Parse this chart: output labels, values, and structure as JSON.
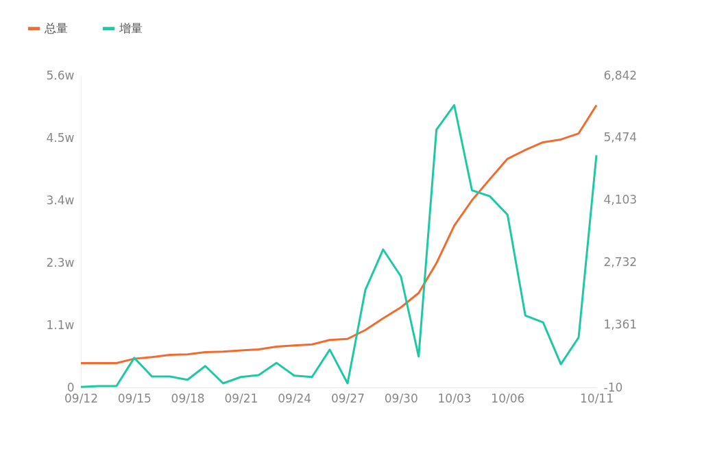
{
  "chart_data": {
    "type": "line",
    "categories": [
      "09/12",
      null,
      null,
      "09/15",
      null,
      null,
      "09/18",
      null,
      null,
      "09/21",
      null,
      null,
      "09/24",
      null,
      null,
      "09/27",
      null,
      null,
      "09/30",
      null,
      null,
      "10/03",
      null,
      null,
      "10/06",
      null,
      null,
      null,
      null,
      "10/11"
    ],
    "series": [
      {
        "name": "总量",
        "color": "#f26b2c",
        "values": [
          0.44,
          0.44,
          0.44,
          0.52,
          0.55,
          0.59,
          0.6,
          0.64,
          0.65,
          0.67,
          0.69,
          0.74,
          0.76,
          0.78,
          0.86,
          0.88,
          1.04,
          1.25,
          1.45,
          1.71,
          2.25,
          2.93,
          3.39,
          3.77,
          4.14,
          4.3,
          4.44,
          4.49,
          4.6,
          5.11
        ]
      },
      {
        "name": "增量",
        "color": "#1ec8a5",
        "axis": "y2",
        "values": [
          0,
          20,
          20,
          640,
          230,
          230,
          160,
          460,
          80,
          220,
          260,
          530,
          250,
          220,
          820,
          80,
          2130,
          3020,
          2430,
          670,
          5650,
          6190,
          4320,
          4190,
          3780,
          1570,
          1420,
          500,
          1090,
          5090
        ]
      }
    ],
    "ylim": [
      0,
      5.65
    ],
    "yticks": [
      0,
      {
        "value": 1.13,
        "label": "1.1w"
      },
      {
        "value": 2.26,
        "label": "2.3w"
      },
      {
        "value": 3.39,
        "label": "3.4w"
      },
      {
        "value": 4.52,
        "label": "4.5w"
      },
      {
        "value": 5.65,
        "label": "5.6w"
      }
    ],
    "y2lim": [
      -10,
      6842
    ],
    "y2ticks": [
      -10,
      {
        "value": 1361,
        "label": "1,361"
      },
      {
        "value": 2732,
        "label": "2,732"
      },
      {
        "value": 4103,
        "label": "4,103"
      },
      {
        "value": 5474,
        "label": "5,474"
      },
      {
        "value": 6842,
        "label": "6,842"
      }
    ],
    "legend": "top left",
    "grid": false,
    "marker": "none",
    "line_style": "solid"
  }
}
